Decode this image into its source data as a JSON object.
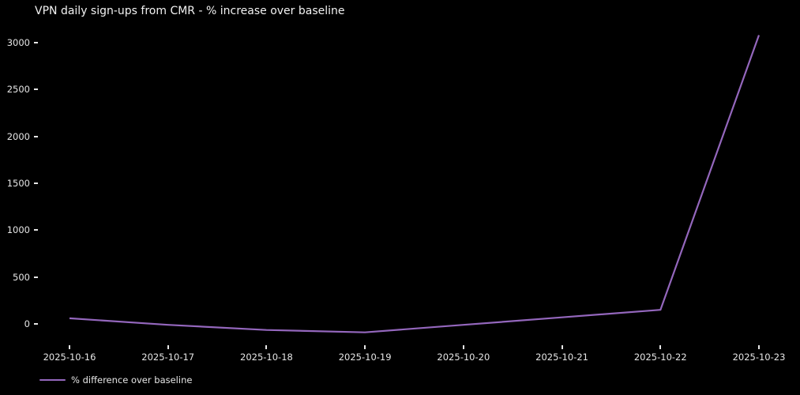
{
  "colors": {
    "background": "#000000",
    "line": "#9467bd",
    "text": "#e6e6e6",
    "title_text": "#f2f2f2"
  },
  "chart_data": {
    "type": "line",
    "title": "VPN daily sign-ups from CMR - % increase over baseline",
    "x": [
      "2025-10-16",
      "2025-10-17",
      "2025-10-18",
      "2025-10-19",
      "2025-10-20",
      "2025-10-21",
      "2025-10-22",
      "2025-10-23"
    ],
    "series": [
      {
        "name": "% difference over baseline",
        "color": "#9467bd",
        "values": [
          60,
          -10,
          -65,
          -90,
          -10,
          70,
          150,
          3080
        ]
      }
    ],
    "xlabel": "",
    "ylabel": "",
    "yticks": [
      0,
      500,
      1000,
      1500,
      2000,
      2500,
      3000
    ],
    "ylim": [
      -250,
      3240
    ],
    "grid": false,
    "background_style": "dark",
    "legend": {
      "position": "lower-left-below-axis",
      "entries": [
        "% difference over baseline"
      ]
    }
  }
}
